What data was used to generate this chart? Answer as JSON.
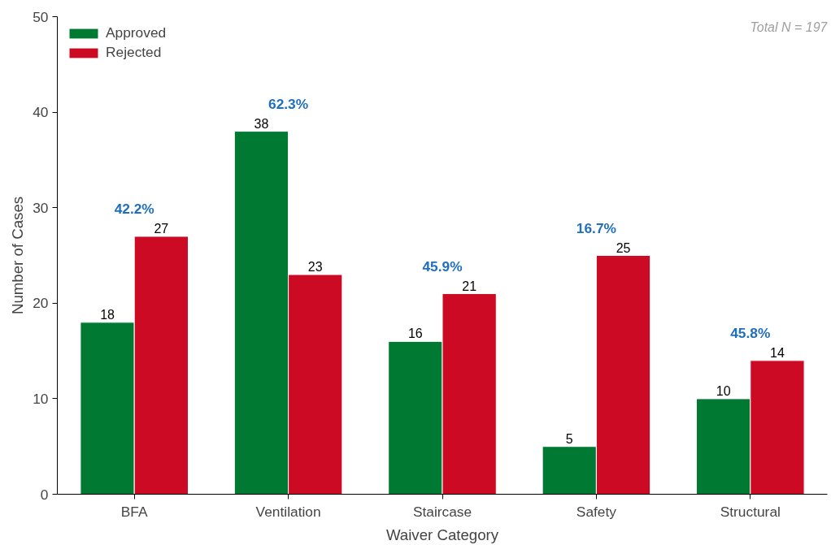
{
  "chart_data": {
    "type": "bar",
    "xlabel": "Waiver Category",
    "ylabel": "Number of Cases",
    "categories": [
      "BFA",
      "Ventilation",
      "Staircase",
      "Safety",
      "Structural"
    ],
    "series": [
      {
        "name": "Approved",
        "color": "#007a33",
        "values": [
          18,
          38,
          16,
          5,
          10
        ]
      },
      {
        "name": "Rejected",
        "color": "#cc0a24",
        "values": [
          27,
          23,
          21,
          25,
          14
        ]
      }
    ],
    "ylim": [
      0,
      50
    ],
    "yticks": [
      0,
      10,
      20,
      30,
      40,
      50
    ],
    "grid": false,
    "legend": "top left",
    "data_labels": true,
    "annotations": [
      {
        "text": "42.2%",
        "x": "BFA",
        "y": 27
      },
      {
        "text": "62.3%",
        "x": "Ventilation",
        "y": 38
      },
      {
        "text": "45.9%",
        "x": "Staircase",
        "y": 21
      },
      {
        "text": "16.7%",
        "x": "Safety",
        "y": 25
      },
      {
        "text": "45.8%",
        "x": "Structural",
        "y": 14
      },
      "Total N = 197"
    ]
  }
}
